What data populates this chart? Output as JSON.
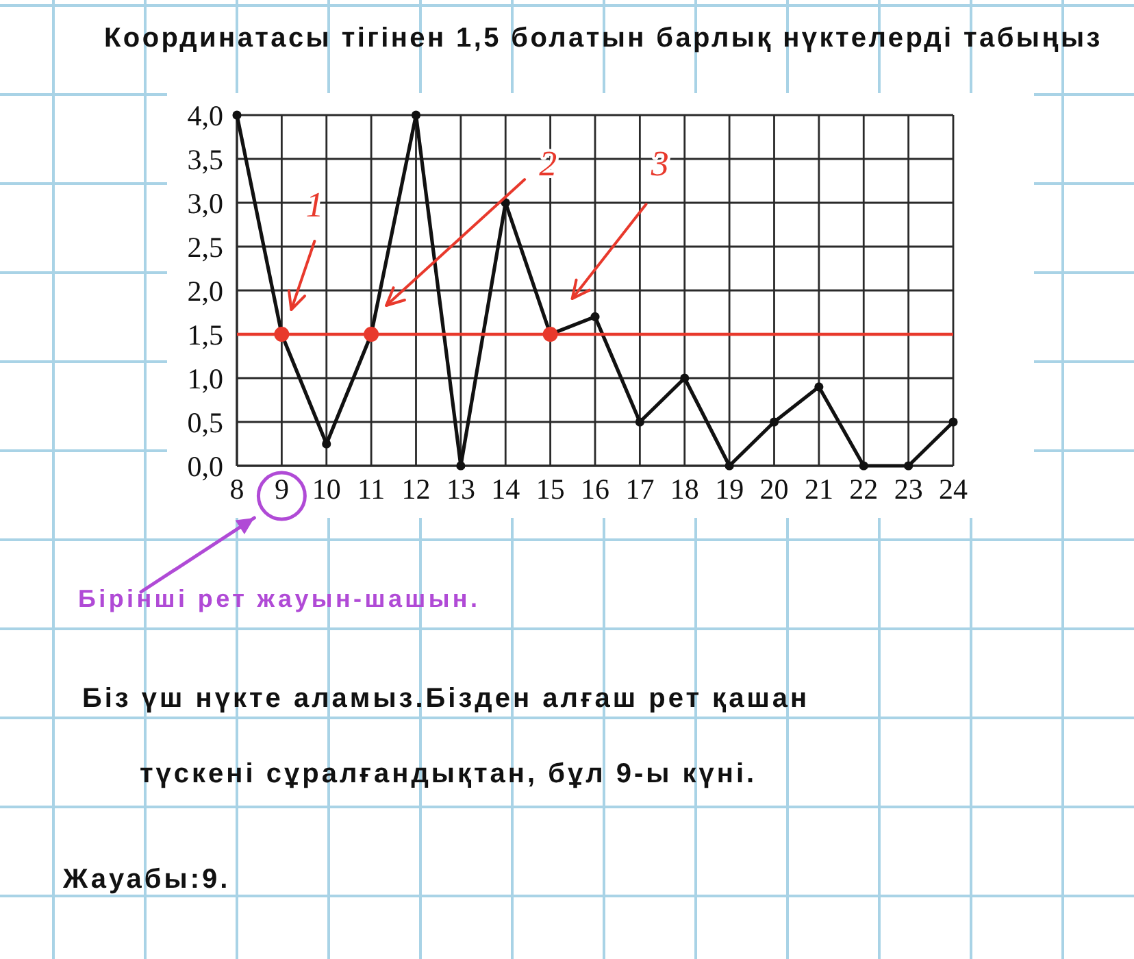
{
  "chart_data": {
    "type": "line",
    "title": "Координатасы тігінен 1,5 болатын барлық нүктелерді табыңыз",
    "x": [
      8,
      9,
      10,
      11,
      12,
      13,
      14,
      15,
      16,
      17,
      18,
      19,
      20,
      21,
      22,
      23,
      24
    ],
    "series": [
      {
        "color": "#111111",
        "values": [
          4,
          1.5,
          0.25,
          1.5,
          4,
          0,
          3,
          1.5,
          1.7,
          0.5,
          1,
          0,
          0.5,
          0.9,
          0,
          0,
          0.5
        ]
      },
      {
        "type": "scatter",
        "color": "#e8392c",
        "x": [
          9,
          11,
          15
        ],
        "values": [
          1.5,
          1.5,
          1.5
        ]
      }
    ],
    "xlim": [
      8,
      24
    ],
    "xticks": [
      8,
      9,
      10,
      11,
      12,
      13,
      14,
      15,
      16,
      17,
      18,
      19,
      20,
      21,
      22,
      23,
      24
    ],
    "ylim": [
      0,
      4
    ],
    "yticks": [
      {
        "value": 0,
        "label": "0,0"
      },
      {
        "value": 0.5,
        "label": "0,5"
      },
      {
        "value": 1,
        "label": "1,0"
      },
      {
        "value": 1.5,
        "label": "1,5"
      },
      {
        "value": 2,
        "label": "2,0"
      },
      {
        "value": 2.5,
        "label": "2,5"
      },
      {
        "value": 3,
        "label": "3,0"
      },
      {
        "value": 3.5,
        "label": "3,5"
      },
      {
        "value": 4,
        "label": "4,0"
      }
    ],
    "ref_lines": [
      {
        "axis": "y",
        "value": 1.5,
        "color": "#e8392c"
      }
    ],
    "annotations": [
      "1",
      "2",
      "3",
      "Бірінші рет жауын-шашын.",
      "Біз үш нүкте аламыз.Бізден алғаш рет қашан",
      "түскені сұралғандықтан, бұл 9-ы күні.",
      "Жауабы:9."
    ],
    "grid": true,
    "marker": "circle",
    "line_style": "solid"
  }
}
